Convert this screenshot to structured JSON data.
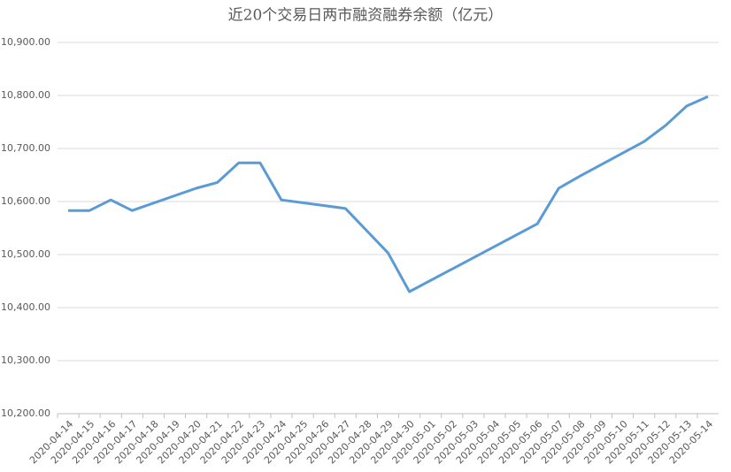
{
  "chart_data": {
    "type": "line",
    "title": "近20个交易日两市融资融券余额（亿元）",
    "x": [
      "2020-04-14",
      "2020-04-15",
      "2020-04-16",
      "2020-04-17",
      "2020-04-20",
      "2020-04-21",
      "2020-04-22",
      "2020-04-23",
      "2020-04-24",
      "2020-04-27",
      "2020-04-28",
      "2020-04-29",
      "2020-04-30",
      "2020-05-06",
      "2020-05-07",
      "2020-05-08",
      "2020-05-11",
      "2020-05-12",
      "2020-05-13",
      "2020-05-14"
    ],
    "series": [
      {
        "color": "#5b9bd5",
        "values": [
          10583,
          10583,
          10603,
          10583,
          10625,
          10636,
          10673,
          10673,
          10603,
          10587,
          10545,
          10503,
          10430,
          10558,
          10625,
          10648,
          10713,
          10743,
          10780,
          10798
        ]
      }
    ],
    "xlim": [
      "2020-04-14",
      "2020-05-14"
    ],
    "xticks": [
      "2020-04-14",
      "2020-04-15",
      "2020-04-16",
      "2020-04-17",
      "2020-04-18",
      "2020-04-19",
      "2020-04-20",
      "2020-04-21",
      "2020-04-22",
      "2020-04-23",
      "2020-04-24",
      "2020-04-25",
      "2020-04-26",
      "2020-04-27",
      "2020-04-28",
      "2020-04-29",
      "2020-04-30",
      "2020-05-01",
      "2020-05-02",
      "2020-05-03",
      "2020-05-04",
      "2020-05-05",
      "2020-05-06",
      "2020-05-07",
      "2020-05-08",
      "2020-05-09",
      "2020-05-10",
      "2020-05-11",
      "2020-05-12",
      "2020-05-13",
      "2020-05-14"
    ],
    "ylim": [
      10200,
      10900
    ],
    "yticks": [
      {
        "value": 10200,
        "label": "10,200.00"
      },
      {
        "value": 10300,
        "label": "10,300.00"
      },
      {
        "value": 10400,
        "label": "10,400.00"
      },
      {
        "value": 10500,
        "label": "10,500.00"
      },
      {
        "value": 10600,
        "label": "10,600.00"
      },
      {
        "value": 10700,
        "label": "10,700.00"
      },
      {
        "value": 10800,
        "label": "10,800.00"
      },
      {
        "value": 10900,
        "label": "10,900.00"
      }
    ],
    "grid": true
  }
}
